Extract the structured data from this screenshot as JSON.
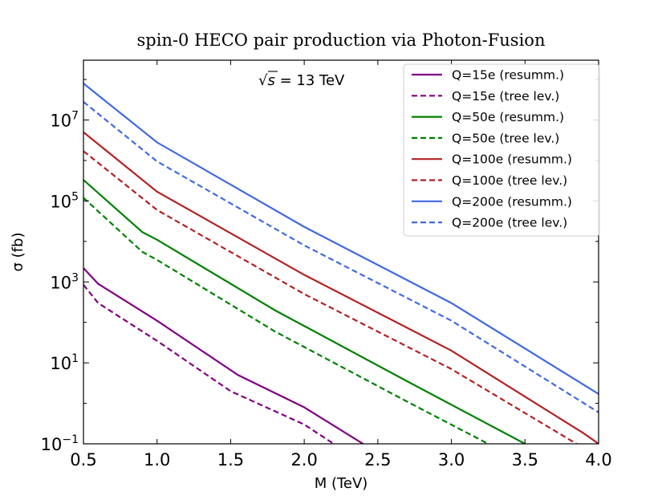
{
  "chart_data": {
    "type": "line",
    "title": "spin-0 HECO pair production via Photon-Fusion",
    "xlabel": "M (TeV)",
    "ylabel": "σ (fb)",
    "xlim": [
      0.5,
      4.0
    ],
    "ylim": [
      0.1,
      300000000
    ],
    "yscale": "log",
    "x_ticks": [
      "0.5",
      "1.0",
      "1.5",
      "2.0",
      "2.5",
      "3.0",
      "3.5",
      "4.0"
    ],
    "y_ticks": [
      {
        "base": "10",
        "exp": "−1"
      },
      {
        "base": "10",
        "exp": "1"
      },
      {
        "base": "10",
        "exp": "3"
      },
      {
        "base": "10",
        "exp": "5"
      },
      {
        "base": "10",
        "exp": "7"
      }
    ],
    "y_tick_values": [
      0.1,
      10,
      1000,
      100000,
      10000000
    ],
    "annotation": {
      "sqrt_symbol": "√",
      "s_var": "s",
      "rest": " = 13  TeV"
    },
    "legend_position": "top-right",
    "grid": false,
    "series": [
      {
        "name": "Q=15e (resumm.)",
        "color": "#800080",
        "style": "solid",
        "x": [
          0.5,
          0.6,
          1.0,
          1.55,
          2.0,
          2.4
        ],
        "y": [
          2200,
          900,
          110,
          5,
          0.8,
          0.1
        ]
      },
      {
        "name": "Q=15e (tree lev.)",
        "color": "#800080",
        "style": "dashed",
        "x": [
          0.5,
          0.6,
          1.0,
          1.5,
          2.0,
          2.2
        ],
        "y": [
          850,
          300,
          35,
          2,
          0.3,
          0.1
        ]
      },
      {
        "name": "Q=50e (resumm.)",
        "color": "#008000",
        "style": "solid",
        "x": [
          0.5,
          0.9,
          1.0,
          1.8,
          2.7,
          3.5
        ],
        "y": [
          330000,
          17000,
          11000,
          200,
          3.5,
          0.1
        ]
      },
      {
        "name": "Q=50e (tree lev.)",
        "color": "#008000",
        "style": "dashed",
        "x": [
          0.5,
          0.9,
          1.0,
          1.8,
          2.7,
          3.25
        ],
        "y": [
          120000,
          5500,
          3500,
          60,
          1.1,
          0.1
        ]
      },
      {
        "name": "Q=100e (resumm.)",
        "color": "#b22222",
        "style": "solid",
        "x": [
          0.5,
          1.0,
          2.0,
          3.0,
          3.9,
          4.0
        ],
        "y": [
          5000000,
          170000,
          1500,
          20,
          0.18,
          0.1
        ]
      },
      {
        "name": "Q=100e (tree lev.)",
        "color": "#b22222",
        "style": "dashed",
        "x": [
          0.5,
          1.0,
          2.0,
          3.0,
          3.85
        ],
        "y": [
          1700000,
          60000,
          500,
          7,
          0.1
        ]
      },
      {
        "name": "Q=200e (resumm.)",
        "color": "#4169e1",
        "style": "solid",
        "x": [
          0.5,
          1.0,
          2.0,
          3.0,
          4.0
        ],
        "y": [
          80000000,
          2800000,
          23000,
          300,
          1.7
        ]
      },
      {
        "name": "Q=200e (tree lev.)",
        "color": "#4169e1",
        "style": "dashed",
        "x": [
          0.5,
          1.0,
          2.0,
          3.0,
          4.0
        ],
        "y": [
          28000000,
          950000,
          8000,
          110,
          0.6
        ]
      }
    ]
  }
}
